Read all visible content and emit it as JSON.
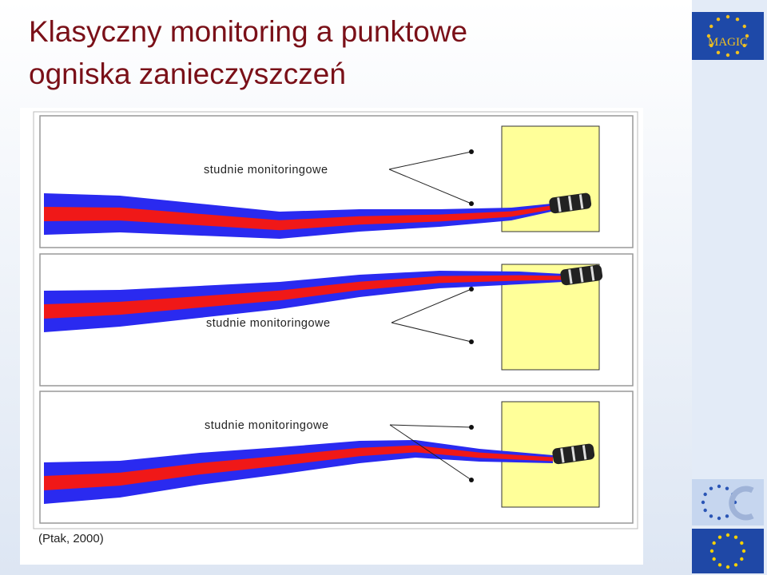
{
  "header": {
    "title_lines": [
      "Klasyczny monitoring a punktowe",
      "ogniska zanieczyszczeń"
    ]
  },
  "logo": {
    "text": "MAGIC"
  },
  "figure": {
    "panels": [
      {
        "label": "studnie monitoringowe"
      },
      {
        "label": "studnie monitoringowe"
      },
      {
        "label": "studnie monitoringowe"
      }
    ],
    "citation": "(Ptak, 2000)"
  }
}
